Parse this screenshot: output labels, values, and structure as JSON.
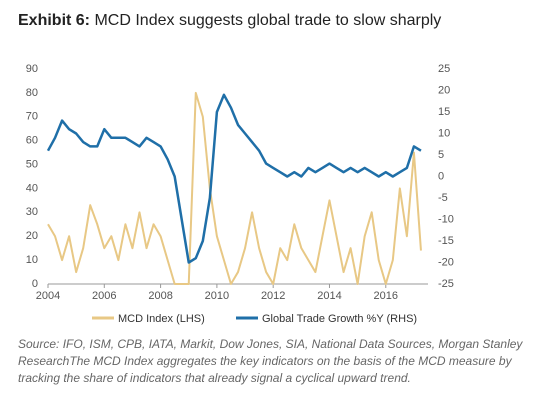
{
  "chart_data": {
    "type": "line",
    "title_label": "Exhibit 6:",
    "title": "MCD Index suggests global trade to slow sharply",
    "source": "Source: IFO, ISM, CPB, IATA, Markit, Dow Jones, SIA, National Data Sources, Morgan Stanley ResearchThe MCD Index aggregates the key indicators on the basis of the MCD measure by tracking the share of indicators that already signal a cyclical upward trend.",
    "x": [
      2004,
      2004.25,
      2004.5,
      2004.75,
      2005,
      2005.25,
      2005.5,
      2005.75,
      2006,
      2006.25,
      2006.5,
      2006.75,
      2007,
      2007.25,
      2007.5,
      2007.75,
      2008,
      2008.25,
      2008.5,
      2008.75,
      2009,
      2009.25,
      2009.5,
      2009.75,
      2010,
      2010.25,
      2010.5,
      2010.75,
      2011,
      2011.25,
      2011.5,
      2011.75,
      2012,
      2012.25,
      2012.5,
      2012.75,
      2013,
      2013.25,
      2013.5,
      2013.75,
      2014,
      2014.25,
      2014.5,
      2014.75,
      2015,
      2015.25,
      2015.5,
      2015.75,
      2016,
      2016.25,
      2016.5,
      2016.75,
      2017,
      2017.25
    ],
    "xlim": [
      2004,
      2017.5
    ],
    "xticks": [
      2004,
      2006,
      2008,
      2010,
      2012,
      2014,
      2016
    ],
    "ylim": [
      0,
      90
    ],
    "yticks": [
      0,
      10,
      20,
      30,
      40,
      50,
      60,
      70,
      80,
      90
    ],
    "y2lim": [
      -25,
      25
    ],
    "y2ticks": [
      -25,
      -20,
      -15,
      -10,
      -5,
      0,
      5,
      10,
      15,
      20,
      25
    ],
    "series": [
      {
        "name": "MCD Index (LHS)",
        "color": "#e8c885",
        "values": [
          25,
          20,
          10,
          20,
          5,
          15,
          33,
          25,
          15,
          20,
          10,
          25,
          15,
          30,
          15,
          25,
          20,
          10,
          0,
          0,
          0,
          80,
          70,
          40,
          20,
          10,
          0,
          5,
          15,
          30,
          15,
          5,
          0,
          15,
          10,
          25,
          15,
          10,
          5,
          20,
          35,
          20,
          5,
          15,
          0,
          20,
          30,
          10,
          0,
          10,
          40,
          20,
          55,
          14
        ]
      },
      {
        "name": "Global Trade Growth %Y (RHS)",
        "color": "#1f6fa8",
        "axis": "y2",
        "values": [
          6,
          9,
          13,
          11,
          10,
          8,
          7,
          7,
          11,
          9,
          9,
          9,
          8,
          7,
          9,
          8,
          7,
          4,
          0,
          -10,
          -20,
          -19,
          -15,
          -5,
          15,
          19,
          16,
          12,
          10,
          8,
          6,
          3,
          2,
          1,
          0,
          1,
          0,
          2,
          1,
          2,
          3,
          2,
          1,
          2,
          1,
          2,
          1,
          0,
          1,
          0,
          1,
          2,
          7,
          6
        ]
      }
    ]
  }
}
